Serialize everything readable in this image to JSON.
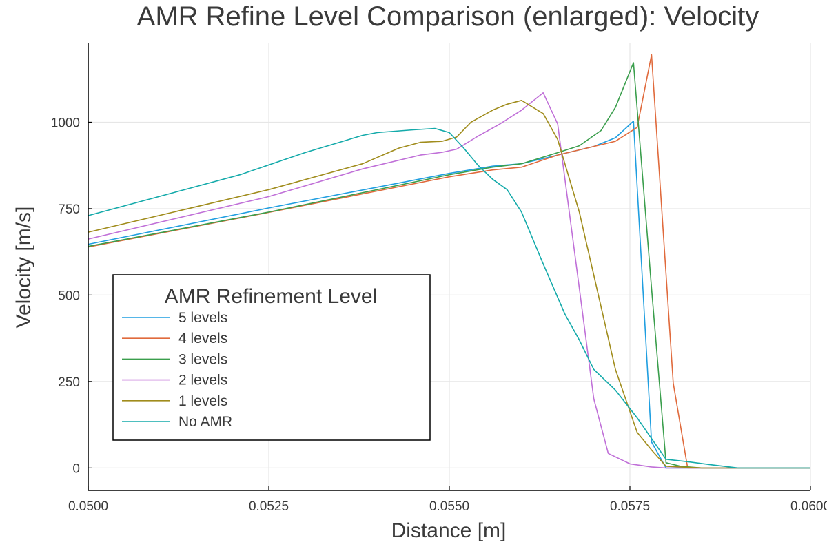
{
  "chart_data": {
    "type": "line",
    "title": "AMR Refine Level Comparison (enlarged): Velocity",
    "xlabel": "Distance [m]",
    "ylabel": "Velocity [m/s]",
    "xlim": [
      0.05,
      0.06
    ],
    "ylim": [
      -65,
      1230
    ],
    "xticks": [
      0.05,
      0.0525,
      0.055,
      0.0575,
      0.06
    ],
    "xtick_labels": [
      "0.0500",
      "0.0525",
      "0.0550",
      "0.0575",
      "0.0600"
    ],
    "yticks": [
      0,
      250,
      500,
      750,
      1000
    ],
    "ytick_labels": [
      "0",
      "250",
      "500",
      "750",
      "1000"
    ],
    "grid": true,
    "legend": {
      "title": "AMR Refinement Level",
      "position": "lower-left"
    },
    "series": [
      {
        "name": "5 levels",
        "color": "#1f9ee0",
        "x": [
          0.05,
          0.0525,
          0.055,
          0.0556,
          0.056,
          0.0565,
          0.057,
          0.0573,
          0.05755,
          0.0578,
          0.058,
          0.0585,
          0.059,
          0.06
        ],
        "y": [
          647,
          752,
          852,
          873,
          880,
          905,
          930,
          955,
          1003,
          75,
          0,
          0,
          0,
          0
        ]
      },
      {
        "name": "4 levels",
        "color": "#e06a3c",
        "x": [
          0.05,
          0.0525,
          0.055,
          0.0556,
          0.056,
          0.0565,
          0.057,
          0.0573,
          0.0576,
          0.0578,
          0.0581,
          0.0583,
          0.0585,
          0.06
        ],
        "y": [
          639,
          739,
          842,
          862,
          870,
          905,
          930,
          945,
          985,
          1195,
          245,
          0,
          0,
          0
        ]
      },
      {
        "name": "3 levels",
        "color": "#3a9e4c",
        "x": [
          0.05,
          0.0525,
          0.055,
          0.0556,
          0.056,
          0.0565,
          0.0568,
          0.0571,
          0.0573,
          0.05755,
          0.0578,
          0.058,
          0.0582,
          0.0585,
          0.06
        ],
        "y": [
          641,
          740,
          848,
          870,
          880,
          912,
          932,
          976,
          1043,
          1172,
          520,
          15,
          5,
          0,
          0
        ]
      },
      {
        "name": "2 levels",
        "color": "#c070d8",
        "x": [
          0.05,
          0.0525,
          0.0538,
          0.0546,
          0.0549,
          0.0551,
          0.0554,
          0.0557,
          0.056,
          0.0563,
          0.0565,
          0.0568,
          0.057,
          0.0572,
          0.0575,
          0.0578,
          0.058,
          0.06
        ],
        "y": [
          662,
          785,
          865,
          905,
          913,
          922,
          960,
          995,
          1035,
          1085,
          995,
          520,
          200,
          42,
          12,
          3,
          0,
          0
        ]
      },
      {
        "name": "1 levels",
        "color": "#a08c1c",
        "x": [
          0.05,
          0.0525,
          0.0538,
          0.0543,
          0.0546,
          0.0549,
          0.0551,
          0.0553,
          0.0556,
          0.0558,
          0.056,
          0.0563,
          0.0565,
          0.0568,
          0.0573,
          0.0576,
          0.0578,
          0.058,
          0.0585,
          0.06
        ],
        "y": [
          682,
          805,
          880,
          925,
          942,
          945,
          957,
          1000,
          1035,
          1052,
          1063,
          1025,
          950,
          740,
          285,
          103,
          52,
          5,
          0,
          0
        ]
      },
      {
        "name": "No AMR",
        "color": "#14aaaa",
        "x": [
          0.05,
          0.0521,
          0.053,
          0.0538,
          0.054,
          0.0545,
          0.0548,
          0.055,
          0.0552,
          0.0554,
          0.0556,
          0.0558,
          0.056,
          0.0563,
          0.0566,
          0.0568,
          0.057,
          0.0573,
          0.0576,
          0.0578,
          0.058,
          0.0583,
          0.0586,
          0.059,
          0.06
        ],
        "y": [
          730,
          848,
          912,
          962,
          970,
          978,
          982,
          970,
          925,
          875,
          835,
          805,
          740,
          590,
          445,
          370,
          285,
          225,
          145,
          85,
          25,
          18,
          10,
          0,
          0
        ]
      }
    ]
  }
}
